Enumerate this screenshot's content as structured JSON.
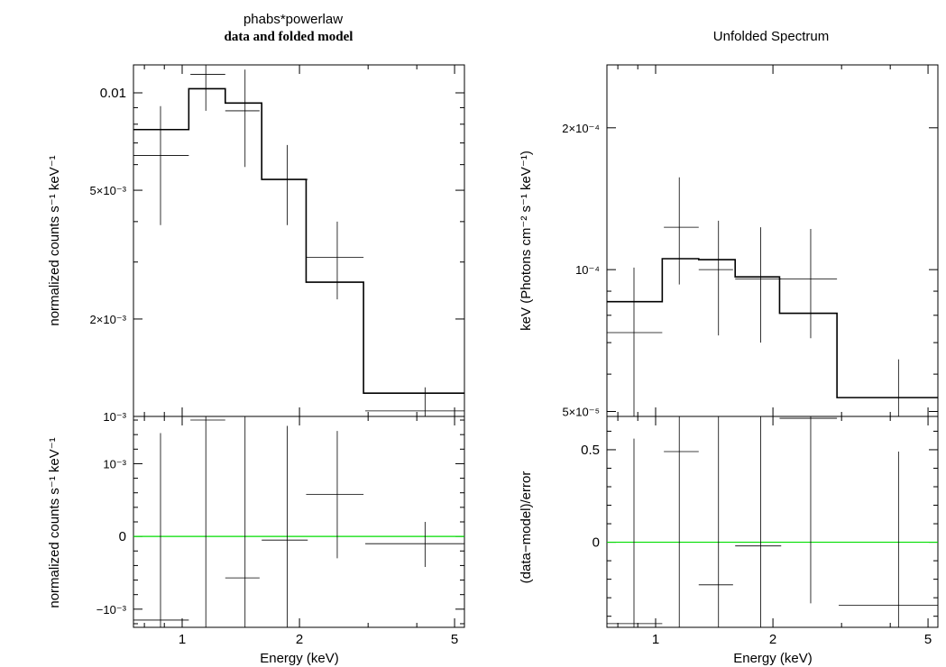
{
  "left": {
    "title_line1": "phabs*powerlaw",
    "title_line2": "data and folded model",
    "top_ylabel": "normalized counts s⁻¹ keV⁻¹",
    "bottom_ylabel": "normalized counts s⁻¹ keV⁻¹",
    "xlabel": "Energy (keV)"
  },
  "right": {
    "title": "Unfolded Spectrum",
    "top_ylabel": "keV (Photons cm⁻² s⁻¹ keV⁻¹)",
    "bottom_ylabel": "(data−model)/error",
    "xlabel": "Energy (keV)"
  },
  "colors": {
    "data": "#000000",
    "model": "#000000",
    "zero_line": "#00dd00",
    "frame": "#000000"
  },
  "chart_data": [
    {
      "id": "left-top",
      "type": "line",
      "xscale": "log",
      "yscale": "log",
      "xlim": [
        0.75,
        5.3
      ],
      "ylim": [
        0.001,
        0.0122
      ],
      "xticks": [
        {
          "v": 1,
          "label": "1"
        },
        {
          "v": 2,
          "label": "2"
        },
        {
          "v": 5,
          "label": "5"
        }
      ],
      "yticks": [
        {
          "v": 0.01,
          "label": "0.01"
        },
        {
          "v": 0.005,
          "label": "5×10⁻³"
        },
        {
          "v": 0.002,
          "label": "2×10⁻³"
        },
        {
          "v": 0.001,
          "label": "10⁻³"
        }
      ],
      "data": [
        {
          "x": 0.88,
          "xlo": 0.75,
          "xhi": 1.04,
          "y": 0.0064,
          "ylo": 0.0039,
          "yhi": 0.0091
        },
        {
          "x": 1.15,
          "xlo": 1.05,
          "xhi": 1.29,
          "y": 0.0114,
          "ylo": 0.0088,
          "yhi": 0.0143
        },
        {
          "x": 1.45,
          "xlo": 1.29,
          "xhi": 1.58,
          "y": 0.0088,
          "ylo": 0.0059,
          "yhi": 0.0118
        },
        {
          "x": 1.86,
          "xlo": 1.6,
          "xhi": 2.1,
          "y": 0.0054,
          "ylo": 0.0039,
          "yhi": 0.0069
        },
        {
          "x": 2.5,
          "xlo": 2.08,
          "xhi": 2.92,
          "y": 0.0031,
          "ylo": 0.0023,
          "yhi": 0.004
        },
        {
          "x": 4.2,
          "xlo": 2.95,
          "xhi": 5.3,
          "y": 0.00104,
          "ylo": 0.00093,
          "yhi": 0.00123
        }
      ],
      "model": {
        "edges": [
          0.75,
          1.04,
          1.29,
          1.6,
          2.08,
          2.92,
          5.3
        ],
        "values": [
          0.0077,
          0.0103,
          0.0093,
          0.0054,
          0.0026,
          0.00118
        ]
      }
    },
    {
      "id": "left-bottom",
      "type": "scatter",
      "xscale": "log",
      "yscale": "linear",
      "xlim": [
        0.75,
        5.3
      ],
      "ylim": [
        -0.00125,
        0.00165
      ],
      "xticks": [
        {
          "v": 1,
          "label": "1"
        },
        {
          "v": 2,
          "label": "2"
        },
        {
          "v": 5,
          "label": "5"
        }
      ],
      "yticks": [
        {
          "v": 0.001,
          "label": "10⁻³"
        },
        {
          "v": 0,
          "label": "0"
        },
        {
          "v": -0.001,
          "label": "−10⁻³"
        }
      ],
      "zero_line": 0,
      "data": [
        {
          "x": 0.88,
          "xlo": 0.75,
          "xhi": 1.04,
          "y": -0.00115,
          "ylo": -0.00125,
          "yhi": 0.00142
        },
        {
          "x": 1.15,
          "xlo": 1.05,
          "xhi": 1.29,
          "y": 0.0016,
          "ylo": -0.00125,
          "yhi": 0.00165
        },
        {
          "x": 1.45,
          "xlo": 1.29,
          "xhi": 1.58,
          "y": -0.00057,
          "ylo": -0.00125,
          "yhi": 0.00165
        },
        {
          "x": 1.86,
          "xlo": 1.6,
          "xhi": 2.1,
          "y": -5e-05,
          "ylo": -0.00125,
          "yhi": 0.00152
        },
        {
          "x": 2.5,
          "xlo": 2.08,
          "xhi": 2.92,
          "y": 0.00058,
          "ylo": -0.0003,
          "yhi": 0.00145
        },
        {
          "x": 4.2,
          "xlo": 2.95,
          "xhi": 5.3,
          "y": -0.0001,
          "ylo": -0.00042,
          "yhi": 0.0002
        }
      ]
    },
    {
      "id": "right-top",
      "type": "line",
      "xscale": "log",
      "yscale": "log",
      "xlim": [
        0.75,
        5.3
      ],
      "ylim": [
        4.88e-05,
        0.000272
      ],
      "xticks": [
        {
          "v": 1,
          "label": "1"
        },
        {
          "v": 2,
          "label": "2"
        },
        {
          "v": 5,
          "label": "5"
        }
      ],
      "yticks": [
        {
          "v": 0.0002,
          "label": "2×10⁻⁴"
        },
        {
          "v": 0.0001,
          "label": "10⁻⁴"
        },
        {
          "v": 5e-05,
          "label": "5×10⁻⁵"
        }
      ],
      "data": [
        {
          "x": 0.88,
          "xlo": 0.75,
          "xhi": 1.04,
          "y": 7.35e-05,
          "ylo": 4.88e-05,
          "yhi": 0.000101
        },
        {
          "x": 1.15,
          "xlo": 1.05,
          "xhi": 1.29,
          "y": 0.000123,
          "ylo": 9.3e-05,
          "yhi": 0.000157
        },
        {
          "x": 1.45,
          "xlo": 1.29,
          "xhi": 1.58,
          "y": 0.0001,
          "ylo": 7.25e-05,
          "yhi": 0.000127
        },
        {
          "x": 1.86,
          "xlo": 1.6,
          "xhi": 2.1,
          "y": 9.55e-05,
          "ylo": 7e-05,
          "yhi": 0.000123
        },
        {
          "x": 2.5,
          "xlo": 2.08,
          "xhi": 2.92,
          "y": 9.55e-05,
          "ylo": 7.15e-05,
          "yhi": 0.000122
        },
        {
          "x": 4.2,
          "xlo": 2.95,
          "xhi": 5.3,
          "y": 4.8e-05,
          "ylo": 4.88e-05,
          "yhi": 6.45e-05
        }
      ],
      "model": {
        "edges": [
          0.75,
          1.04,
          1.29,
          1.6,
          2.08,
          2.92,
          5.3
        ],
        "values": [
          8.55e-05,
          0.0001055,
          0.000105,
          9.65e-05,
          8.08e-05,
          5.35e-05
        ]
      }
    },
    {
      "id": "right-bottom",
      "type": "scatter",
      "xscale": "log",
      "yscale": "linear",
      "xlim": [
        0.75,
        5.3
      ],
      "ylim": [
        -0.46,
        0.68
      ],
      "xticks": [
        {
          "v": 1,
          "label": "1"
        },
        {
          "v": 2,
          "label": "2"
        },
        {
          "v": 5,
          "label": "5"
        }
      ],
      "yticks": [
        {
          "v": 0.5,
          "label": "0.5"
        },
        {
          "v": 0,
          "label": "0"
        }
      ],
      "zero_line": 0,
      "data": [
        {
          "x": 0.88,
          "xlo": 0.75,
          "xhi": 1.04,
          "y": -0.44,
          "ylo": -0.46,
          "yhi": 0.56
        },
        {
          "x": 1.15,
          "xlo": 1.05,
          "xhi": 1.29,
          "y": 0.49,
          "ylo": -0.46,
          "yhi": 0.68
        },
        {
          "x": 1.45,
          "xlo": 1.29,
          "xhi": 1.58,
          "y": -0.23,
          "ylo": -0.46,
          "yhi": 0.68
        },
        {
          "x": 1.86,
          "xlo": 1.6,
          "xhi": 2.1,
          "y": -0.02,
          "ylo": -0.46,
          "yhi": 0.68
        },
        {
          "x": 2.5,
          "xlo": 2.08,
          "xhi": 2.92,
          "y": 0.67,
          "ylo": -0.33,
          "yhi": 0.68
        },
        {
          "x": 4.2,
          "xlo": 2.95,
          "xhi": 5.3,
          "y": -0.34,
          "ylo": -0.46,
          "yhi": 0.49
        }
      ]
    }
  ]
}
